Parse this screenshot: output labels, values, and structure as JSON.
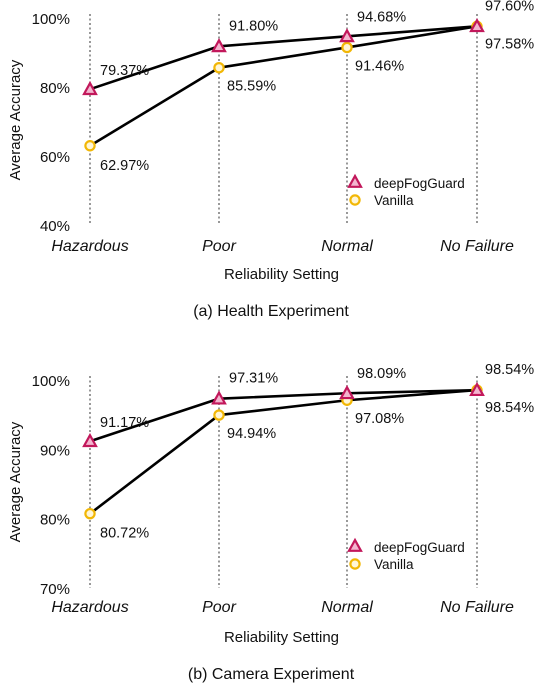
{
  "captions": {
    "a": "(a) Health Experiment",
    "b": "(b) Camera Experiment"
  },
  "colors": {
    "deepFogGuard": "#c2185b",
    "deepFogGuard_fill": "#f3b5cf",
    "vanilla": "#f2b705",
    "vanilla_fill": "#fff6d6",
    "line": "#000000",
    "grid": "#555555"
  },
  "chart_data": [
    {
      "type": "line",
      "title": "",
      "xlabel": "Reliability Setting",
      "ylabel": "Average Accuracy",
      "categories": [
        "Hazardous",
        "Poor",
        "Normal",
        "No Failure"
      ],
      "ylim": [
        40,
        100
      ],
      "yticks": [
        "40%",
        "60%",
        "80%",
        "100%"
      ],
      "ytick_values": [
        40,
        60,
        80,
        100
      ],
      "grid": "vertical dotted lines at categories",
      "legend_position": "bottom-right",
      "series": [
        {
          "name": "deepFogGuard",
          "marker": "triangle",
          "values": [
            79.37,
            91.8,
            94.68,
            97.6
          ],
          "labels": [
            "79.37%",
            "91.80%",
            "94.68%",
            "97.60%"
          ]
        },
        {
          "name": "Vanilla",
          "marker": "circle",
          "values": [
            62.97,
            85.59,
            91.46,
            97.58
          ],
          "labels": [
            "62.97%",
            "85.59%",
            "91.46%",
            "97.58%"
          ]
        }
      ]
    },
    {
      "type": "line",
      "title": "",
      "xlabel": "Reliability Setting",
      "ylabel": "Average Accuracy",
      "categories": [
        "Hazardous",
        "Poor",
        "Normal",
        "No Failure"
      ],
      "ylim": [
        70,
        100
      ],
      "yticks": [
        "70%",
        "80%",
        "90%",
        "100%"
      ],
      "ytick_values": [
        70,
        80,
        90,
        100
      ],
      "grid": "vertical dotted lines at categories",
      "legend_position": "bottom-right",
      "series": [
        {
          "name": "deepFogGuard",
          "marker": "triangle",
          "values": [
            91.17,
            97.31,
            98.09,
            98.54
          ],
          "labels": [
            "91.17%",
            "97.31%",
            "98.09%",
            "98.54%"
          ]
        },
        {
          "name": "Vanilla",
          "marker": "circle",
          "values": [
            80.72,
            94.94,
            97.08,
            98.54
          ],
          "labels": [
            "80.72%",
            "94.94%",
            "97.08%",
            "98.54%"
          ]
        }
      ]
    }
  ]
}
